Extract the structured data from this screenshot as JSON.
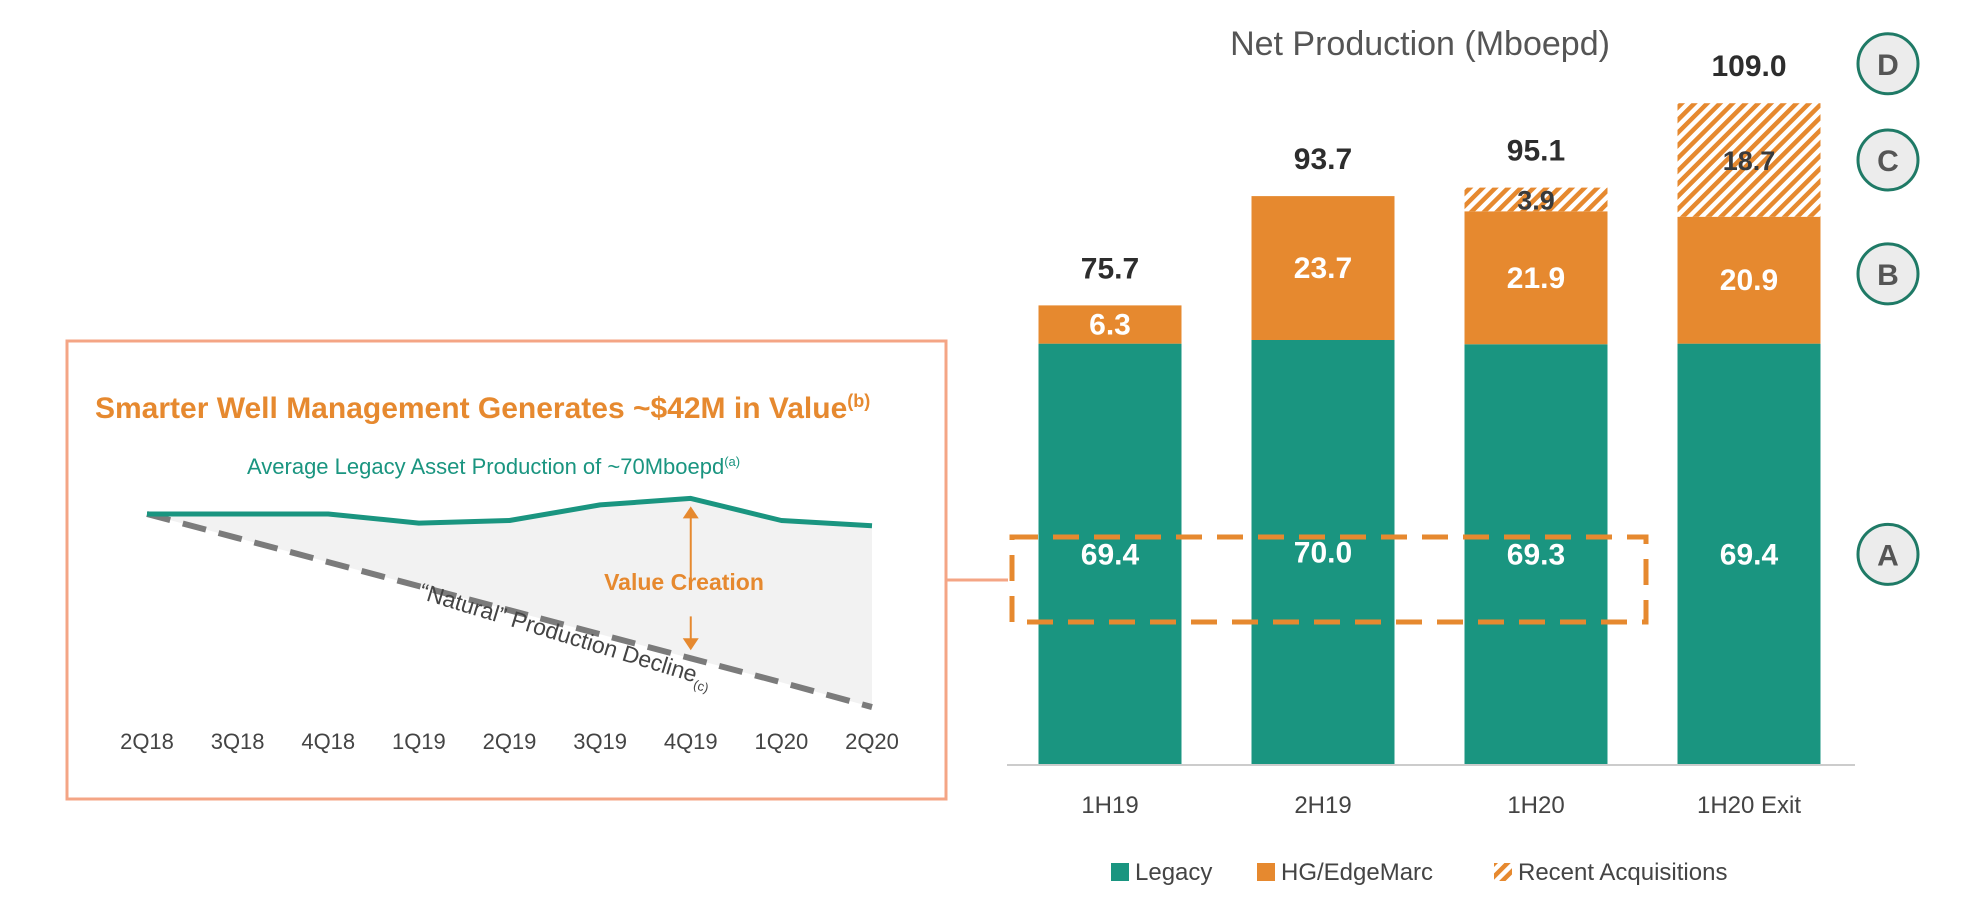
{
  "colors": {
    "legacy": "#1a9580",
    "hg": "#e6892f",
    "acq_stripe": "#e6892f",
    "inset_border": "#f4a585",
    "label_dark": "#2d2d2d",
    "axis_label": "#444444",
    "dashed_decline": "#7b7b7b",
    "circle_fill": "#ececec",
    "circle_stroke": "#1f7a66"
  },
  "chart_data": [
    {
      "type": "bar",
      "stacked": true,
      "title": "Net Production (Mboepd)",
      "categories": [
        "1H19",
        "2H19",
        "1H20",
        "1H20 Exit"
      ],
      "series": [
        {
          "name": "Legacy",
          "values": [
            69.4,
            70.0,
            69.3,
            69.4
          ],
          "labels": [
            "69.4",
            "70.0",
            "69.3",
            "69.4"
          ]
        },
        {
          "name": "HG/EdgeMarc",
          "values": [
            6.3,
            23.7,
            21.9,
            20.9
          ],
          "labels": [
            "6.3",
            "23.7",
            "21.9",
            "20.9"
          ]
        },
        {
          "name": "Recent Acquisitions",
          "values": [
            0,
            0,
            3.9,
            18.7
          ],
          "labels": [
            "",
            "",
            "3.9",
            "18.7"
          ]
        }
      ],
      "totals": [
        "75.7",
        "93.7",
        "95.1",
        "109.0"
      ],
      "ylim": [
        0,
        112
      ],
      "legend": [
        "Legacy",
        "HG/EdgeMarc",
        "Recent Acquisitions"
      ],
      "legend_position": "bottom",
      "markers": [
        "A",
        "B",
        "C",
        "D"
      ]
    },
    {
      "type": "line",
      "title": "Smarter Well Management Generates ~$42M in Value",
      "title_superscript": "(b)",
      "subtitle": "Average Legacy Asset Production of ~70Mboepd",
      "subtitle_superscript": "(a)",
      "x": [
        "2Q18",
        "3Q18",
        "4Q18",
        "1Q19",
        "2Q19",
        "3Q19",
        "4Q19",
        "1Q20",
        "2Q20"
      ],
      "series": [
        {
          "name": "Legacy production",
          "values": [
            70.0,
            70.0,
            70.0,
            68.6,
            69.0,
            71.4,
            72.4,
            69.0,
            68.2
          ]
        },
        {
          "name": "Natural Production Decline",
          "values": [
            70.0,
            66.3,
            62.6,
            58.9,
            55.2,
            51.5,
            47.8,
            44.1,
            40.3
          ]
        }
      ],
      "ylim": [
        38,
        74
      ],
      "annotation": "Value Creation",
      "decline_label": "“Natural” Production Decline",
      "decline_sub": "(c)"
    }
  ]
}
